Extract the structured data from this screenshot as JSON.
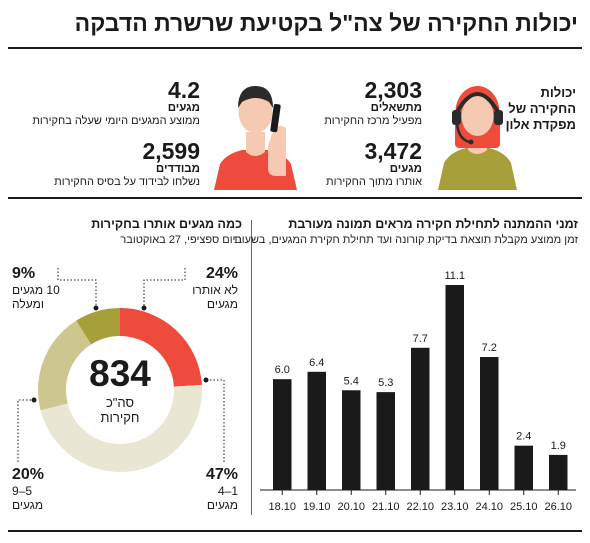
{
  "title": "יכולות החקירה של צה\"ל בקטיעת שרשרת הדבקה",
  "capabilities": {
    "label": "יכולות החקירה של מפקדת אלון",
    "stats": [
      {
        "value": "2,303",
        "unit": "מתשאלים",
        "desc": "מפעיל מרכז החקירות"
      },
      {
        "value": "3,472",
        "unit": "מגעים",
        "desc": "אותרו מתוך החקירות"
      },
      {
        "value": "4.2",
        "unit": "מגעים",
        "desc": "ממוצע המגעים היומי שעלה בחקירות"
      },
      {
        "value": "2,599",
        "unit": "מבודדים",
        "desc": "נשלחו לבידוד על בסיס החקירות"
      }
    ]
  },
  "donut": {
    "title": "כמה מגעים אותרו בחקירות",
    "subtitle": "ביום ספציפי, 27 באוקטובר",
    "center_value": "834",
    "center_line1": "סה\"כ",
    "center_line2": "חקירות",
    "labels": [
      {
        "pct": "24%",
        "text1": "לא אותרו",
        "text2": "מגעים"
      },
      {
        "pct": "47%",
        "text1": "1–4",
        "text2": "מגעים"
      },
      {
        "pct": "20%",
        "text1": "5–9",
        "text2": "מגעים"
      },
      {
        "pct": "9%",
        "text1": "10 מגעים",
        "text2": "ומעלה"
      }
    ]
  },
  "bars": {
    "title": "זמני ההמתנה לתחילת חקירה מראים תמונה מעורבת",
    "subtitle": "זמן ממוצע מקבלת תוצאת בדיקת קורונה ועד תחילת חקירת המגעים, בשעות"
  },
  "chart_data": [
    {
      "type": "pie",
      "title": "כמה מגעים אותרו בחקירות",
      "categories": [
        "לא אותרו מגעים",
        "1–4 מגעים",
        "5–9 מגעים",
        "10 מגעים ומעלה"
      ],
      "values": [
        24,
        47,
        20,
        9
      ],
      "colors": [
        "#ef4b3d",
        "#e9e6d3",
        "#cdc78f",
        "#a7a03a"
      ],
      "total": 834
    },
    {
      "type": "bar",
      "title": "זמני ההמתנה לתחילת חקירה מראים תמונה מעורבת",
      "categories": [
        "18.10",
        "19.10",
        "20.10",
        "21.10",
        "22.10",
        "23.10",
        "24.10",
        "25.10",
        "26.10"
      ],
      "values": [
        6.0,
        6.4,
        5.4,
        5.3,
        7.7,
        11.1,
        7.2,
        2.4,
        1.9
      ],
      "value_labels": [
        "6.0",
        "6.4",
        "5.4",
        "5.3",
        "7.7",
        "11.1",
        "7.2",
        "2.4",
        "1.9"
      ],
      "ylim": [
        0,
        11.1
      ],
      "grid": false,
      "bar_color": "#1a1a1a"
    }
  ]
}
